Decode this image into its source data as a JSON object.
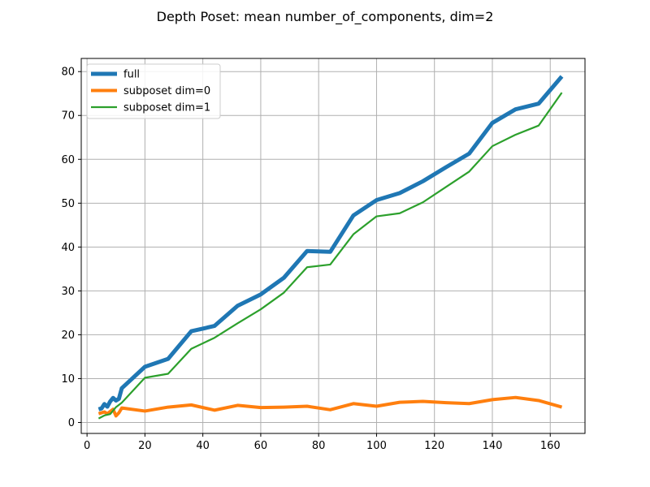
{
  "chart_data": {
    "type": "line",
    "title": "Depth Poset: mean number_of_components, dim=2",
    "xlabel": "",
    "ylabel": "",
    "xlim": [
      -2,
      172
    ],
    "ylim": [
      -2.5,
      83
    ],
    "xticks": [
      0,
      20,
      40,
      60,
      80,
      100,
      120,
      140,
      160
    ],
    "yticks": [
      0,
      10,
      20,
      30,
      40,
      50,
      60,
      70,
      80
    ],
    "grid": true,
    "legend_position": "top-left",
    "series": [
      {
        "name": "full",
        "color": "#1f77b4",
        "x": [
          4,
          5,
          6,
          7,
          8,
          9,
          10,
          11,
          12,
          20,
          28,
          36,
          44,
          52,
          60,
          68,
          76,
          84,
          92,
          100,
          108,
          116,
          124,
          132,
          140,
          148,
          156,
          164
        ],
        "y": [
          3.0,
          3.2,
          4.2,
          3.6,
          4.8,
          5.6,
          5.0,
          5.4,
          7.8,
          12.7,
          14.5,
          20.8,
          22.0,
          26.6,
          29.2,
          33.0,
          39.1,
          38.9,
          47.2,
          50.7,
          52.3,
          55.0,
          58.2,
          61.3,
          68.3,
          71.4,
          72.7,
          78.9
        ]
      },
      {
        "name": "subposet dim=0",
        "color": "#ff7f0e",
        "x": [
          4,
          5,
          6,
          7,
          8,
          9,
          10,
          11,
          12,
          20,
          28,
          36,
          44,
          52,
          60,
          68,
          76,
          84,
          92,
          100,
          108,
          116,
          124,
          132,
          140,
          148,
          156,
          164
        ],
        "y": [
          2.0,
          2.2,
          2.4,
          2.0,
          2.5,
          3.0,
          1.5,
          2.2,
          3.3,
          2.6,
          3.5,
          4.0,
          2.8,
          3.9,
          3.4,
          3.5,
          3.7,
          2.9,
          4.3,
          3.7,
          4.6,
          4.8,
          4.5,
          4.3,
          5.2,
          5.7,
          5.0,
          3.5
        ]
      },
      {
        "name": "subposet dim=1",
        "color": "#2ca02c",
        "x": [
          4,
          6,
          8,
          10,
          12,
          20,
          28,
          36,
          44,
          52,
          60,
          68,
          76,
          84,
          92,
          100,
          108,
          116,
          124,
          132,
          140,
          148,
          156,
          164
        ],
        "y": [
          0.9,
          1.6,
          1.9,
          3.5,
          4.5,
          10.2,
          11.1,
          16.8,
          19.3,
          22.6,
          25.8,
          29.6,
          35.4,
          36.0,
          42.9,
          47.0,
          47.7,
          50.2,
          53.7,
          57.2,
          63.0,
          65.6,
          67.7,
          75.2
        ]
      }
    ]
  }
}
